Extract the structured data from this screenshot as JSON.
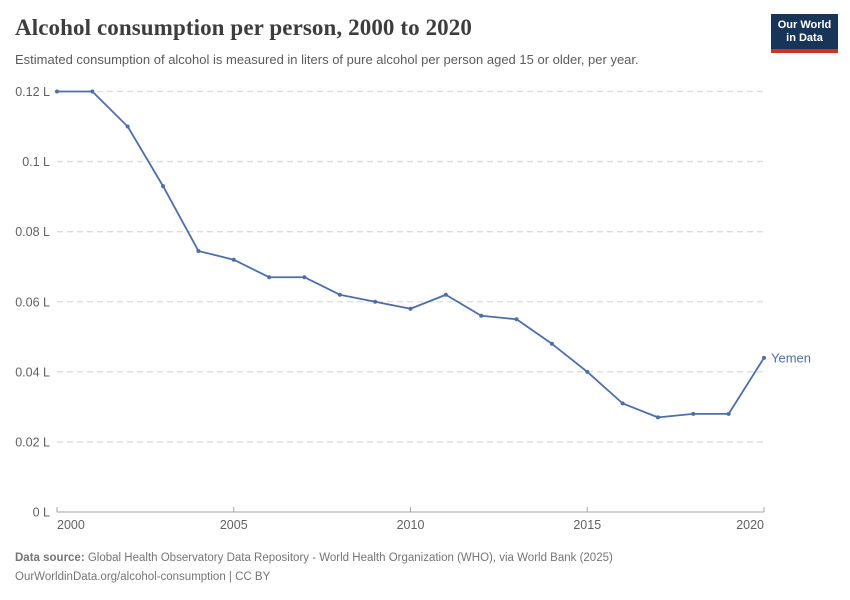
{
  "header": {
    "title": "Alcohol consumption per person, 2000 to 2020",
    "subtitle": "Estimated consumption of alcohol is measured in liters of pure alcohol per person aged 15 or older, per year."
  },
  "logo": {
    "line1": "Our World",
    "line2": "in Data",
    "bg_color": "#183459",
    "stripe_color": "#cf3122"
  },
  "chart_data": {
    "type": "line",
    "title": "Alcohol consumption per person, 2000 to 2020",
    "entity_label": "Yemen",
    "unit": "L",
    "x": [
      2000,
      2001,
      2002,
      2003,
      2004,
      2005,
      2006,
      2007,
      2008,
      2009,
      2010,
      2011,
      2012,
      2013,
      2014,
      2015,
      2016,
      2017,
      2018,
      2019,
      2020
    ],
    "series": [
      {
        "name": "Yemen",
        "values": [
          0.12,
          0.12,
          0.11,
          0.093,
          0.0745,
          0.072,
          0.067,
          0.067,
          0.062,
          0.06,
          0.058,
          0.062,
          0.056,
          0.055,
          0.048,
          0.04,
          0.031,
          0.027,
          0.028,
          0.028,
          0.044
        ]
      }
    ],
    "xlabel": "",
    "ylabel": "",
    "xlim": [
      2000,
      2020
    ],
    "ylim": [
      0,
      0.12
    ],
    "x_tick_values": [
      2000,
      2005,
      2010,
      2015,
      2020
    ],
    "x_tick_labels": [
      "2000",
      "2005",
      "2010",
      "2015",
      "2020"
    ],
    "y_tick_values": [
      0,
      0.02,
      0.04,
      0.06,
      0.08,
      0.1,
      0.12
    ],
    "y_tick_labels": [
      "0 L",
      "0.02 L",
      "0.04 L",
      "0.06 L",
      "0.08 L",
      "0.1 L",
      "0.12 L"
    ],
    "grid": "horizontal-dashed",
    "legend_position": "end-of-line",
    "line_color": "#4e6ea7",
    "grid_color": "#dcdcdc",
    "axis_color": "#a5a5a5",
    "tick_label_color": "#616161"
  },
  "footer": {
    "source_label": "Data source:",
    "source_text": " Global Health Observatory Data Repository - World Health Organization (WHO), via World Bank (2025)",
    "line2": "OurWorldinData.org/alcohol-consumption | CC BY"
  }
}
